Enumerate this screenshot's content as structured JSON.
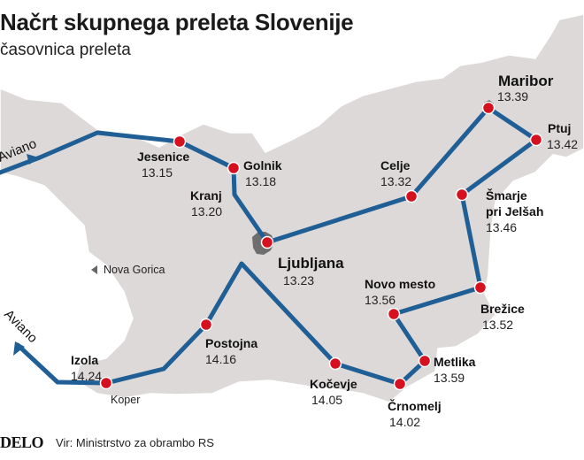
{
  "title": "Načrt skupnega preleta Slovenije",
  "subtitle": "časovnica preleta",
  "route_color": "#1f5f95",
  "marker_color": "#d6111f",
  "land_color": "#ded9d9",
  "stops": [
    {
      "name": "Jesenice",
      "time": "13.15"
    },
    {
      "name": "Golnik",
      "time": "13.18"
    },
    {
      "name": "Kranj",
      "time": "13.20"
    },
    {
      "name": "Ljubljana",
      "time": "13.23"
    },
    {
      "name": "Celje",
      "time": "13.32"
    },
    {
      "name": "Maribor",
      "time": "13.39"
    },
    {
      "name": "Ptuj",
      "time": "13.42"
    },
    {
      "name": "Šmarje pri Jelšah",
      "line1": "Šmarje",
      "line2": "pri Jelšah",
      "time": "13.46"
    },
    {
      "name": "Brežice",
      "time": "13.52"
    },
    {
      "name": "Novo mesto",
      "time": "13.56"
    },
    {
      "name": "Metlika",
      "time": "13.59"
    },
    {
      "name": "Črnomelj",
      "time": "14.02"
    },
    {
      "name": "Kočevje",
      "time": "14.05"
    },
    {
      "name": "Postojna",
      "time": "14.16"
    },
    {
      "name": "Izola",
      "time": "14.24"
    }
  ],
  "other_places": [
    "Nova Gorica",
    "Koper"
  ],
  "origin_labels": [
    "Aviano",
    "Aviano"
  ],
  "footer": {
    "logo": "DELO",
    "source": "Vir: Ministrstvo za obrambo RS"
  }
}
